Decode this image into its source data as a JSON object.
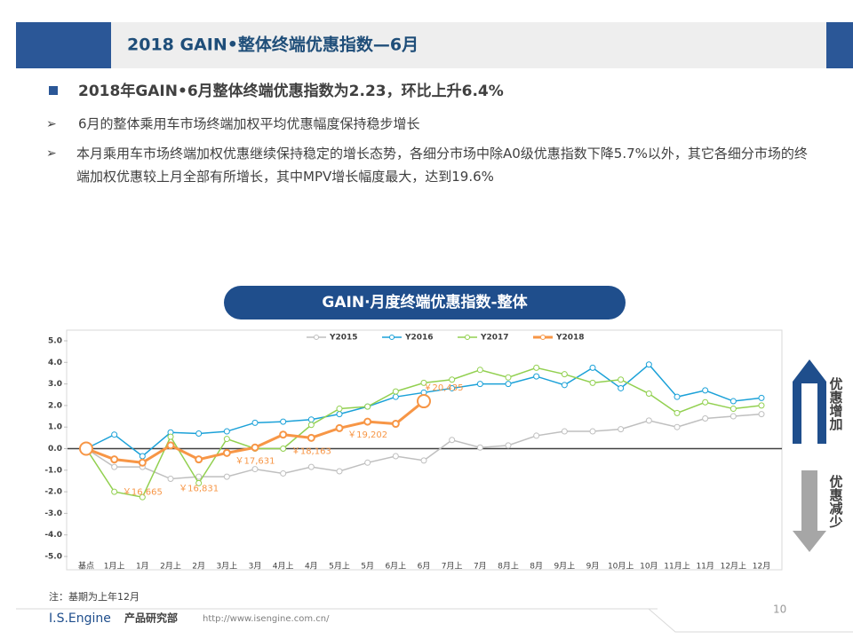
{
  "header": {
    "title": "2018 GAIN•整体终端优惠指数—6月"
  },
  "bullets": {
    "main": "2018年GAIN•6月整体终端优惠指数为2.23，环比上升6.4%",
    "points": [
      "6月的整体乘用车市场终端加权平均优惠幅度保持稳步增长",
      "本月乘用车市场终端加权优惠继续保持稳定的增长态势，各细分市场中除A0级优惠指数下降5.7%以外，其它各细分市场的终端加权优惠较上月全部有所增长，其中MPV增长幅度最大，达到19.6%"
    ]
  },
  "chart_data": {
    "type": "line",
    "title": "GAIN·月度终端优惠指数-整体",
    "categories": [
      "基点",
      "1月上",
      "1月",
      "2月上",
      "2月",
      "3月上",
      "3月",
      "4月上",
      "4月",
      "5月上",
      "5月",
      "6月上",
      "6月",
      "7月上",
      "7月",
      "8月上",
      "8月",
      "9月上",
      "9月",
      "10月上",
      "10月",
      "11月上",
      "11月",
      "12月上",
      "12月"
    ],
    "series": [
      {
        "name": "Y2015",
        "color": "#bfbfbf",
        "values": [
          0,
          -0.85,
          -0.85,
          -1.4,
          -1.3,
          -1.3,
          -0.95,
          -1.15,
          -0.85,
          -1.05,
          -0.65,
          -0.35,
          -0.55,
          0.4,
          0.05,
          0.15,
          0.6,
          0.8,
          0.8,
          0.9,
          1.3,
          1.0,
          1.4,
          1.5,
          1.6
        ]
      },
      {
        "name": "Y2016",
        "color": "#1ba1d8",
        "values": [
          0,
          0.65,
          -0.35,
          0.75,
          0.7,
          0.8,
          1.2,
          1.25,
          1.35,
          1.6,
          1.95,
          2.4,
          2.6,
          2.8,
          3.0,
          3.0,
          3.35,
          2.95,
          3.75,
          2.8,
          3.9,
          2.4,
          2.7,
          2.2,
          2.35
        ]
      },
      {
        "name": "Y2017",
        "color": "#92d050",
        "values": [
          0,
          -2.0,
          -2.25,
          0.55,
          -1.6,
          0.45,
          0.0,
          0.0,
          1.1,
          1.85,
          1.95,
          2.65,
          3.05,
          3.2,
          3.65,
          3.3,
          3.75,
          3.45,
          3.05,
          3.2,
          2.55,
          1.65,
          2.15,
          1.85,
          2.0
        ]
      },
      {
        "name": "Y2018",
        "color": "#f79646",
        "values": [
          0,
          -0.5,
          -0.65,
          0.15,
          -0.5,
          -0.2,
          0.05,
          0.65,
          0.5,
          0.95,
          1.25,
          1.15,
          2.2,
          null,
          null,
          null,
          null,
          null,
          null,
          null,
          null,
          null,
          null,
          null,
          null
        ],
        "price_labels": [
          null,
          null,
          "￥16,665",
          null,
          "￥16,831",
          null,
          "￥17,631",
          null,
          "￥18,163",
          null,
          "￥19,202",
          null,
          "￥20,435",
          null,
          null,
          null,
          null,
          null,
          null,
          null,
          null,
          null,
          null,
          null,
          null
        ]
      }
    ],
    "ylim": [
      -5,
      5
    ],
    "yticks": [
      {
        "value": -5,
        "label": "-5.0"
      },
      {
        "value": -4,
        "label": "-4.0"
      },
      {
        "value": -3,
        "label": "-3.0"
      },
      {
        "value": -2,
        "label": "-2.0"
      },
      {
        "value": -1,
        "label": "-1.0"
      },
      {
        "value": 0,
        "label": "0.0"
      },
      {
        "value": 1,
        "label": "1.0"
      },
      {
        "value": 2,
        "label": "2.0"
      },
      {
        "value": 3,
        "label": "3.0"
      },
      {
        "value": 4,
        "label": "4.0"
      },
      {
        "value": 5,
        "label": "5.0"
      }
    ],
    "legend": "top",
    "side_labels": {
      "up": "优惠增加",
      "down": "优惠减少"
    },
    "note": "注：基期为上年12月"
  },
  "footer": {
    "brand": "I.S.Engine",
    "dept": "产品研究部",
    "url": "http://www.isengine.com.cn/",
    "page": "10"
  }
}
